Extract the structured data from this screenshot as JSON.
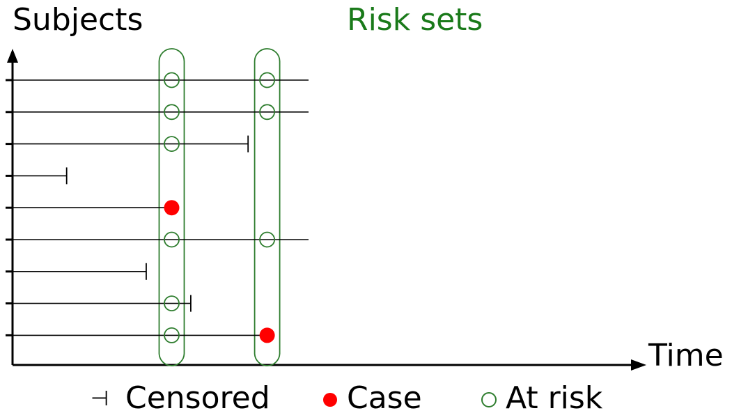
{
  "diagram": {
    "y_axis_label": "Subjects",
    "x_axis_label": "Time",
    "risk_sets_title": "Risk sets",
    "colors": {
      "axis": "#000000",
      "line": "#000000",
      "risk_set": "#2e7d2e",
      "risk_title": "#1a7a1a",
      "case": "#ff0000",
      "at_risk": "#2e7d2e"
    },
    "subjects": [
      {
        "id": 1,
        "end_time": 9.3,
        "outcome": "ongoing",
        "at_risk_sets": [
          1,
          2
        ],
        "case_set": null
      },
      {
        "id": 2,
        "end_time": 9.3,
        "outcome": "ongoing",
        "at_risk_sets": [
          1,
          2
        ],
        "case_set": null
      },
      {
        "id": 3,
        "end_time": 7.4,
        "outcome": "censored",
        "at_risk_sets": [
          1
        ],
        "case_set": null
      },
      {
        "id": 4,
        "end_time": 1.7,
        "outcome": "censored",
        "at_risk_sets": [],
        "case_set": null
      },
      {
        "id": 5,
        "end_time": 5.0,
        "outcome": "case",
        "at_risk_sets": [],
        "case_set": 1
      },
      {
        "id": 6,
        "end_time": 9.3,
        "outcome": "ongoing",
        "at_risk_sets": [
          1,
          2
        ],
        "case_set": null
      },
      {
        "id": 7,
        "end_time": 4.2,
        "outcome": "censored",
        "at_risk_sets": [],
        "case_set": null
      },
      {
        "id": 8,
        "end_time": 5.6,
        "outcome": "censored",
        "at_risk_sets": [
          1
        ],
        "case_set": null
      },
      {
        "id": 9,
        "end_time": 8.0,
        "outcome": "case",
        "at_risk_sets": [
          1
        ],
        "case_set": 2
      }
    ],
    "risk_set_times": [
      5.0,
      8.0
    ],
    "legend": {
      "censored_symbol": "⊣",
      "censored_label": "Censored",
      "case_label": "Case",
      "at_risk_label": "At risk"
    }
  }
}
